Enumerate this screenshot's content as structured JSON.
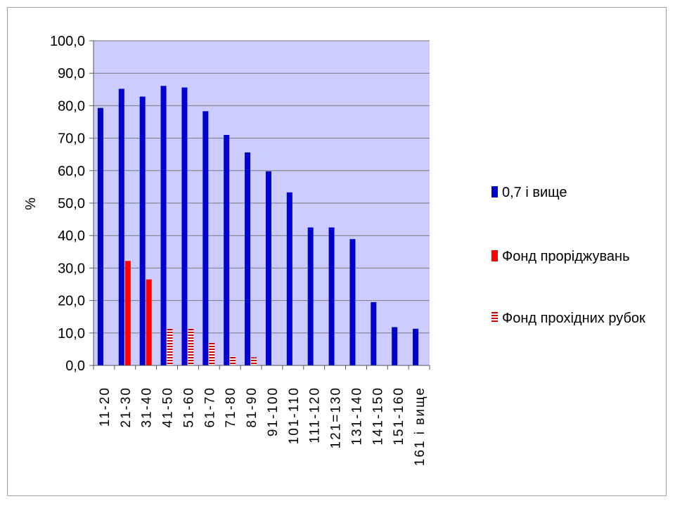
{
  "chart_data": {
    "type": "bar",
    "ylabel": "%",
    "xlabel": "",
    "ylim": [
      0,
      100
    ],
    "ytick_step": 10,
    "ytick_format": "comma-1dp",
    "grid": true,
    "legend_position": "right",
    "plot_background": "#ccccff",
    "categories": [
      "11-20",
      "21-30",
      "31-40",
      "41-50",
      "51-60",
      "61-70",
      "71-80",
      "81-90",
      "91-100",
      "101-110",
      "111-120",
      "121=130",
      "131-140",
      "141-150",
      "151-160",
      "161 і вище"
    ],
    "series": [
      {
        "name": "0,7 і вище",
        "color": "#0000cc",
        "pattern": "solid",
        "values": [
          79.3,
          85.2,
          82.8,
          86.1,
          85.6,
          78.3,
          71.0,
          65.6,
          59.8,
          53.3,
          42.5,
          42.5,
          38.9,
          19.5,
          11.8,
          11.3
        ]
      },
      {
        "name": "Фонд проріджувань",
        "color": "#ff0000",
        "pattern": "solid",
        "values": [
          0,
          32.2,
          26.5,
          0,
          0,
          0,
          0,
          0,
          0,
          0,
          0,
          0,
          0,
          0,
          0,
          0
        ]
      },
      {
        "name": "Фонд прохідних рубок",
        "color": "#cc0000",
        "pattern": "striped",
        "values": [
          0,
          0,
          0,
          11.3,
          11.3,
          7.0,
          2.8,
          2.5,
          0,
          0,
          0,
          0,
          0,
          0,
          0,
          0
        ]
      }
    ]
  }
}
